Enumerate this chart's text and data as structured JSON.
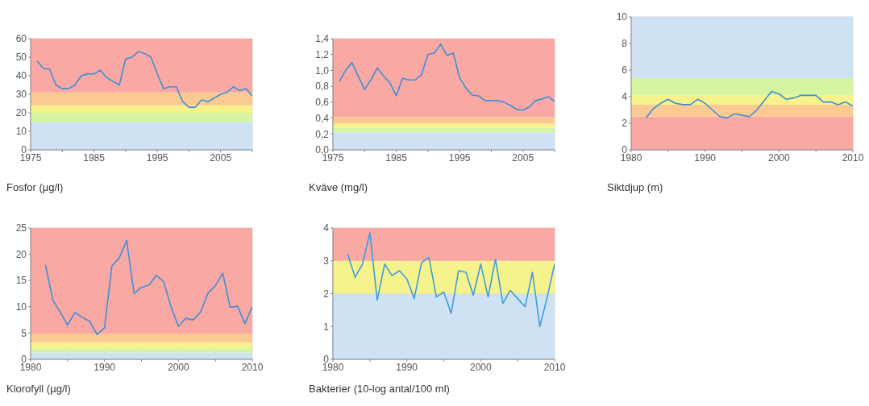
{
  "chart_data": [
    {
      "type": "line",
      "title": "Fosfor (µg/l)",
      "color": "#3d8fd6",
      "grid": true,
      "xlim": [
        1975,
        2010
      ],
      "xticks": [
        1975,
        {
          "value": 1980,
          "label": null
        },
        1985,
        {
          "value": 1990,
          "label": null
        },
        1995,
        {
          "value": 2000,
          "label": null
        },
        2005,
        {
          "value": 2010,
          "label": null
        }
      ],
      "ylim": [
        0,
        60
      ],
      "yticks": [
        0,
        10,
        20,
        30,
        40,
        50,
        60
      ],
      "x": [
        1976,
        1977,
        1978,
        1979,
        1980,
        1981,
        1982,
        1983,
        1984,
        1985,
        1986,
        1987,
        1988,
        1989,
        1990,
        1991,
        1992,
        1993,
        1994,
        1995,
        1996,
        1997,
        1998,
        1999,
        2000,
        2001,
        2002,
        2003,
        2004,
        2005,
        2006,
        2007,
        2008,
        2009,
        2010
      ],
      "values": [
        48,
        44,
        43.5,
        35,
        33,
        33,
        35,
        40,
        41,
        41,
        43,
        39,
        37,
        35,
        49,
        50,
        53,
        52,
        50,
        41,
        33,
        34,
        34,
        26,
        23,
        23,
        27,
        26,
        28,
        30,
        31,
        34,
        32,
        33,
        29
      ],
      "bands": [
        {
          "axis": "y",
          "from": 0,
          "to": 15,
          "color": "#cfe2f3"
        },
        {
          "axis": "y",
          "from": 15,
          "to": 20,
          "color": "#d6f5a3"
        },
        {
          "axis": "y",
          "from": 20,
          "to": 24,
          "color": "#f7f38c"
        },
        {
          "axis": "y",
          "from": 24,
          "to": 31,
          "color": "#fbca92"
        },
        {
          "axis": "y",
          "from": 31,
          "to": 60,
          "color": "#f9a8a4"
        }
      ]
    },
    {
      "type": "line",
      "title": "Kväve (mg/l)",
      "color": "#3d8fd6",
      "grid": true,
      "xlim": [
        1975,
        2010
      ],
      "xticks": [
        1975,
        {
          "value": 1980,
          "label": null
        },
        1985,
        {
          "value": 1990,
          "label": null
        },
        1995,
        {
          "value": 2000,
          "label": null
        },
        2005,
        {
          "value": 2010,
          "label": null
        }
      ],
      "ylim": [
        0,
        1.4
      ],
      "yticks": [
        {
          "value": 0,
          "label": "0,0"
        },
        {
          "value": 0.2,
          "label": "0,2"
        },
        {
          "value": 0.4,
          "label": "0,4"
        },
        {
          "value": 0.6,
          "label": "0,6"
        },
        {
          "value": 0.8,
          "label": "0,8"
        },
        {
          "value": 1,
          "label": "1,0"
        },
        {
          "value": 1.2,
          "label": "1,2"
        },
        {
          "value": 1.4,
          "label": "1,4"
        }
      ],
      "x": [
        1976,
        1977,
        1978,
        1979,
        1980,
        1981,
        1982,
        1983,
        1984,
        1985,
        1986,
        1987,
        1988,
        1989,
        1990,
        1991,
        1992,
        1993,
        1994,
        1995,
        1996,
        1997,
        1998,
        1999,
        2000,
        2001,
        2002,
        2003,
        2004,
        2005,
        2006,
        2007,
        2008,
        2009,
        2010
      ],
      "values": [
        0.86,
        1.0,
        1.1,
        0.93,
        0.76,
        0.88,
        1.03,
        0.93,
        0.84,
        0.68,
        0.9,
        0.88,
        0.88,
        0.95,
        1.2,
        1.22,
        1.33,
        1.19,
        1.22,
        0.91,
        0.78,
        0.69,
        0.68,
        0.62,
        0.62,
        0.62,
        0.6,
        0.56,
        0.51,
        0.5,
        0.54,
        0.62,
        0.64,
        0.67,
        0.61
      ],
      "bands": [
        {
          "axis": "y",
          "from": 0,
          "to": 0.22,
          "color": "#cfe2f3"
        },
        {
          "axis": "y",
          "from": 0.22,
          "to": 0.28,
          "color": "#d6f5a3"
        },
        {
          "axis": "y",
          "from": 0.28,
          "to": 0.33,
          "color": "#f7f38c"
        },
        {
          "axis": "y",
          "from": 0.33,
          "to": 0.41,
          "color": "#fbca92"
        },
        {
          "axis": "y",
          "from": 0.41,
          "to": 1.4,
          "color": "#f9a8a4"
        }
      ]
    },
    {
      "type": "line",
      "title": "Siktdjup (m)",
      "color": "#3d8fd6",
      "grid": true,
      "xlim": [
        1980,
        2010
      ],
      "xticks": [
        1980,
        {
          "value": 1985,
          "label": null
        },
        1990,
        {
          "value": 1995,
          "label": null
        },
        2000,
        {
          "value": 2005,
          "label": null
        },
        2010
      ],
      "ylim": [
        0,
        10
      ],
      "yticks": [
        0,
        2,
        4,
        6,
        8,
        10
      ],
      "x": [
        1982,
        1983,
        1984,
        1985,
        1986,
        1987,
        1988,
        1989,
        1990,
        1991,
        1992,
        1993,
        1994,
        1995,
        1996,
        1997,
        1998,
        1999,
        2000,
        2001,
        2002,
        2003,
        2004,
        2005,
        2006,
        2007,
        2008,
        2009,
        2010
      ],
      "values": [
        2.4,
        3.1,
        3.5,
        3.8,
        3.5,
        3.4,
        3.4,
        3.8,
        3.5,
        3.0,
        2.5,
        2.4,
        2.7,
        2.6,
        2.5,
        3.0,
        3.7,
        4.4,
        4.2,
        3.8,
        3.9,
        4.1,
        4.1,
        4.1,
        3.6,
        3.6,
        3.4,
        3.6,
        3.3
      ],
      "bands": [
        {
          "axis": "y",
          "from": 0,
          "to": 2.5,
          "color": "#f9a8a4"
        },
        {
          "axis": "y",
          "from": 2.5,
          "to": 3.4,
          "color": "#fbca92"
        },
        {
          "axis": "y",
          "from": 3.4,
          "to": 4.1,
          "color": "#f7f38c"
        },
        {
          "axis": "y",
          "from": 4.1,
          "to": 5.4,
          "color": "#d6f5a3"
        },
        {
          "axis": "y",
          "from": 5.4,
          "to": 10,
          "color": "#cfe2f3"
        }
      ]
    },
    {
      "type": "line",
      "title": "Klorofyll (µg/l)",
      "color": "#3d8fd6",
      "grid": true,
      "xlim": [
        1980,
        2010
      ],
      "xticks": [
        1980,
        {
          "value": 1985,
          "label": null
        },
        1990,
        {
          "value": 1995,
          "label": null
        },
        2000,
        {
          "value": 2005,
          "label": null
        },
        2010
      ],
      "ylim": [
        0,
        25
      ],
      "yticks": [
        0,
        5,
        10,
        15,
        20,
        25
      ],
      "x": [
        1982,
        1983,
        1984,
        1985,
        1986,
        1987,
        1988,
        1989,
        1990,
        1991,
        1992,
        1993,
        1994,
        1995,
        1996,
        1997,
        1998,
        1999,
        2000,
        2001,
        2002,
        2003,
        2004,
        2005,
        2006,
        2007,
        2008,
        2009,
        2010
      ],
      "values": [
        18,
        11.3,
        9,
        6.5,
        8.9,
        8,
        7.2,
        4.7,
        6,
        17.8,
        19.3,
        22.6,
        12.5,
        13.7,
        14.1,
        16,
        14.8,
        10,
        6.3,
        7.8,
        7.5,
        9,
        12.6,
        14,
        16.4,
        9.9,
        10.1,
        6.8,
        10
      ],
      "bands": [
        {
          "axis": "y",
          "from": 0,
          "to": 1.3,
          "color": "#cfe2f3"
        },
        {
          "axis": "y",
          "from": 1.3,
          "to": 2.1,
          "color": "#d6f5a3"
        },
        {
          "axis": "y",
          "from": 2.1,
          "to": 3.2,
          "color": "#f7f38c"
        },
        {
          "axis": "y",
          "from": 3.2,
          "to": 4.9,
          "color": "#fbca92"
        },
        {
          "axis": "y",
          "from": 4.9,
          "to": 25,
          "color": "#f9a8a4"
        }
      ]
    },
    {
      "type": "line",
      "title": "Bakterier (10-log antal/100 ml)",
      "color": "#3d9be0",
      "grid": true,
      "xlim": [
        1980,
        2010
      ],
      "xticks": [
        1980,
        {
          "value": 1985,
          "label": null
        },
        1990,
        {
          "value": 1995,
          "label": null
        },
        2000,
        {
          "value": 2005,
          "label": null
        },
        2010
      ],
      "ylim": [
        0,
        4
      ],
      "yticks": [
        0,
        1,
        2,
        3,
        4
      ],
      "x": [
        1982,
        1983,
        1984,
        1985,
        1986,
        1987,
        1988,
        1989,
        1990,
        1991,
        1992,
        1993,
        1994,
        1995,
        1996,
        1997,
        1998,
        1999,
        2000,
        2001,
        2002,
        2003,
        2004,
        2005,
        2006,
        2007,
        2008,
        2009,
        2010
      ],
      "values": [
        3.2,
        2.5,
        2.9,
        3.85,
        1.8,
        2.9,
        2.55,
        2.7,
        2.45,
        1.85,
        2.95,
        3.1,
        1.9,
        2.05,
        1.4,
        2.7,
        2.65,
        1.95,
        2.9,
        1.9,
        3.05,
        1.7,
        2.1,
        1.85,
        1.6,
        2.65,
        1.0,
        1.9,
        2.9
      ],
      "bands": [
        {
          "axis": "y",
          "from": 0,
          "to": 2,
          "color": "#cfe2f3"
        },
        {
          "axis": "y",
          "from": 2,
          "to": 3,
          "color": "#f7f38c"
        },
        {
          "axis": "y",
          "from": 3,
          "to": 4,
          "color": "#f9a8a4"
        }
      ]
    }
  ]
}
